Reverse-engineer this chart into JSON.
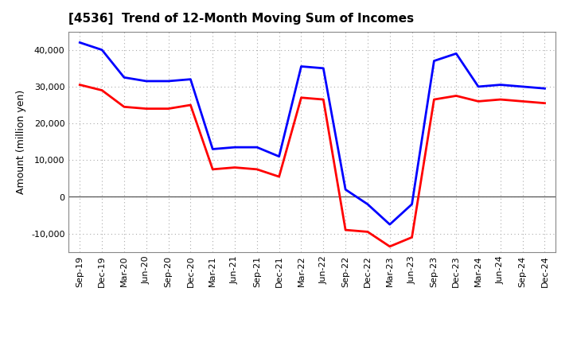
{
  "title": "[4536]  Trend of 12-Month Moving Sum of Incomes",
  "ylabel": "Amount (million yen)",
  "x_labels": [
    "Sep-19",
    "Dec-19",
    "Mar-20",
    "Jun-20",
    "Sep-20",
    "Dec-20",
    "Mar-21",
    "Jun-21",
    "Sep-21",
    "Dec-21",
    "Mar-22",
    "Jun-22",
    "Sep-22",
    "Dec-22",
    "Mar-23",
    "Jun-23",
    "Sep-23",
    "Dec-23",
    "Mar-24",
    "Jun-24",
    "Sep-24",
    "Dec-24"
  ],
  "ordinary_income": [
    42000,
    40000,
    32500,
    31500,
    31500,
    32000,
    13000,
    13500,
    13500,
    11000,
    35500,
    35000,
    2000,
    -2000,
    -7500,
    -2000,
    37000,
    39000,
    30000,
    30500,
    30000,
    29500
  ],
  "net_income": [
    30500,
    29000,
    24500,
    24000,
    24000,
    25000,
    7500,
    8000,
    7500,
    5500,
    27000,
    26500,
    -9000,
    -9500,
    -13500,
    -11000,
    26500,
    27500,
    26000,
    26500,
    26000,
    25500
  ],
  "ordinary_color": "#0000ff",
  "net_color": "#ff0000",
  "ylim": [
    -15000,
    45000
  ],
  "yticks": [
    -10000,
    0,
    10000,
    20000,
    30000,
    40000
  ],
  "grid_color": "#aaaaaa",
  "background_color": "#ffffff",
  "line_width": 2.0,
  "title_fontsize": 11,
  "ylabel_fontsize": 9,
  "tick_fontsize": 8,
  "legend_fontsize": 9
}
